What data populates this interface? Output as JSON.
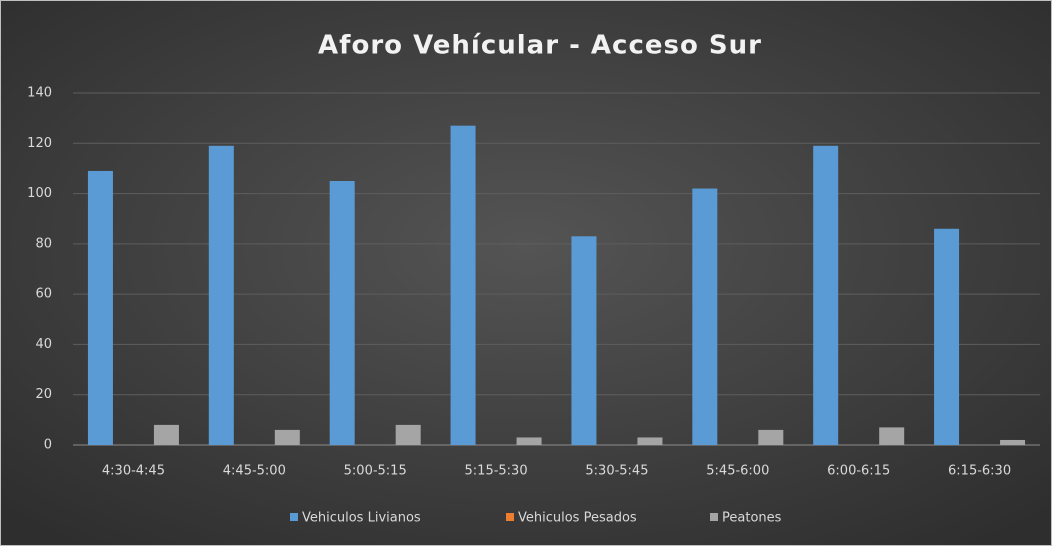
{
  "chart_data": {
    "type": "bar",
    "title": "Aforo Vehícular - Acceso Sur",
    "categories": [
      "4:30-4:45",
      "4:45-5:00",
      "5:00-5:15",
      "5:15-5:30",
      "5:30-5:45",
      "5:45-6:00",
      "6:00-6:15",
      "6:15-6:30"
    ],
    "series": [
      {
        "name": "Vehiculos Livianos",
        "color": "#5b9bd5",
        "values": [
          109,
          119,
          105,
          127,
          83,
          102,
          119,
          86
        ]
      },
      {
        "name": "Vehiculos Pesados",
        "color": "#ed7d31",
        "values": [
          0,
          0,
          0,
          0,
          0,
          0,
          0,
          0
        ]
      },
      {
        "name": "Peatones",
        "color": "#a5a5a5",
        "values": [
          8,
          6,
          8,
          3,
          3,
          6,
          7,
          2
        ]
      }
    ],
    "ylim": [
      0,
      140
    ],
    "yticks": [
      0,
      20,
      40,
      60,
      80,
      100,
      120,
      140
    ],
    "grid": true,
    "legend": "bottom"
  }
}
